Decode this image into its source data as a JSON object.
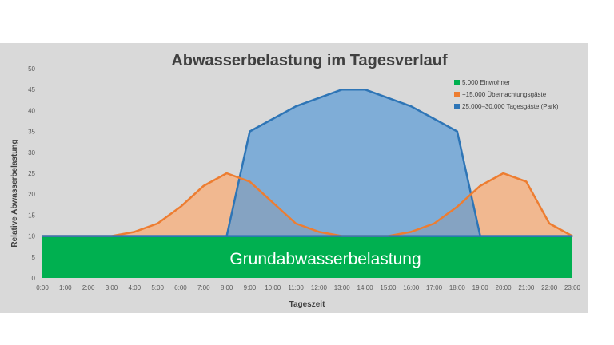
{
  "chart_data": {
    "type": "area",
    "title": "Abwasserbelastung im Tagesverlauf",
    "xlabel": "Tageszeit",
    "ylabel": "Relative Abwasserbelastung",
    "ylim": [
      0,
      50
    ],
    "yticks": [
      "0",
      "5",
      "10",
      "15",
      "20",
      "25",
      "30",
      "35",
      "40",
      "45",
      "50"
    ],
    "categories": [
      "0:00",
      "1:00",
      "2:00",
      "3:00",
      "4:00",
      "5:00",
      "6:00",
      "7:00",
      "8:00",
      "9:00",
      "10:00",
      "11:00",
      "12:00",
      "13:00",
      "14:00",
      "15:00",
      "16:00",
      "17:00",
      "18:00",
      "19:00",
      "20:00",
      "21:00",
      "22:00",
      "23:00"
    ],
    "legend_position": "top-right",
    "grid": false,
    "series": [
      {
        "name": "5.000 Einwohner",
        "color": "#00b050",
        "values": [
          10,
          10,
          10,
          10,
          10,
          10,
          10,
          10,
          10,
          10,
          10,
          10,
          10,
          10,
          10,
          10,
          10,
          10,
          10,
          10,
          10,
          10,
          10,
          10
        ]
      },
      {
        "name": "+15.000 Übernachtungsgäste",
        "color": "#ed7d31",
        "values": [
          10,
          10,
          10,
          10,
          11,
          13,
          17,
          22,
          25,
          23,
          18,
          13,
          11,
          10,
          10,
          10,
          11,
          13,
          17,
          22,
          25,
          23,
          13,
          10
        ]
      },
      {
        "name": "25.000–30.000 Tagesgäste (Park)",
        "color": "#2e75b6",
        "values": [
          10,
          10,
          10,
          10,
          10,
          10,
          10,
          10,
          10,
          35,
          38,
          41,
          43,
          45,
          45,
          43,
          41,
          38,
          35,
          10,
          10,
          10,
          10,
          10
        ]
      }
    ],
    "annotation": "Grundabwasserbelastung"
  }
}
